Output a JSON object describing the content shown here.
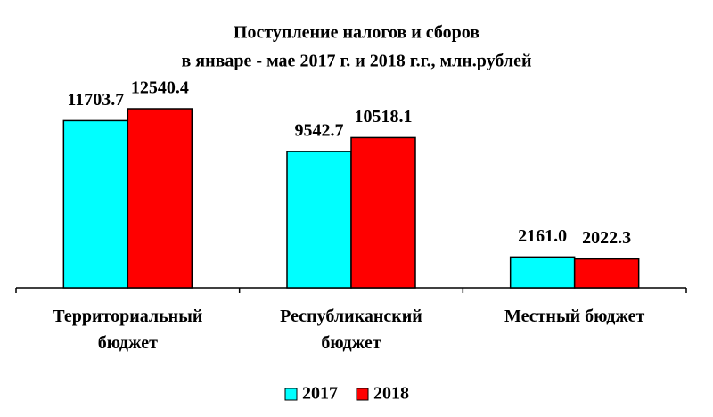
{
  "chart_data": {
    "type": "bar",
    "title": [
      "Поступление налогов и сборов",
      "в январе - мае 2017 г. и 2018 г.г., млн.рублей"
    ],
    "categories": [
      "Территориальный бюджет",
      "Республиканский бюджет",
      "Местный бюджет"
    ],
    "series": [
      {
        "name": "2017",
        "color": "#00ffff",
        "values": [
          11703.7,
          9542.7,
          2161.0
        ],
        "value_labels": [
          "11703.7",
          "9542.7",
          "2161.0"
        ]
      },
      {
        "name": "2018",
        "color": "#ff0000",
        "values": [
          12540.4,
          10518.1,
          2022.3
        ],
        "value_labels": [
          "12540.4",
          "10518.1",
          "2022.3"
        ]
      }
    ],
    "legend": "bottom"
  }
}
